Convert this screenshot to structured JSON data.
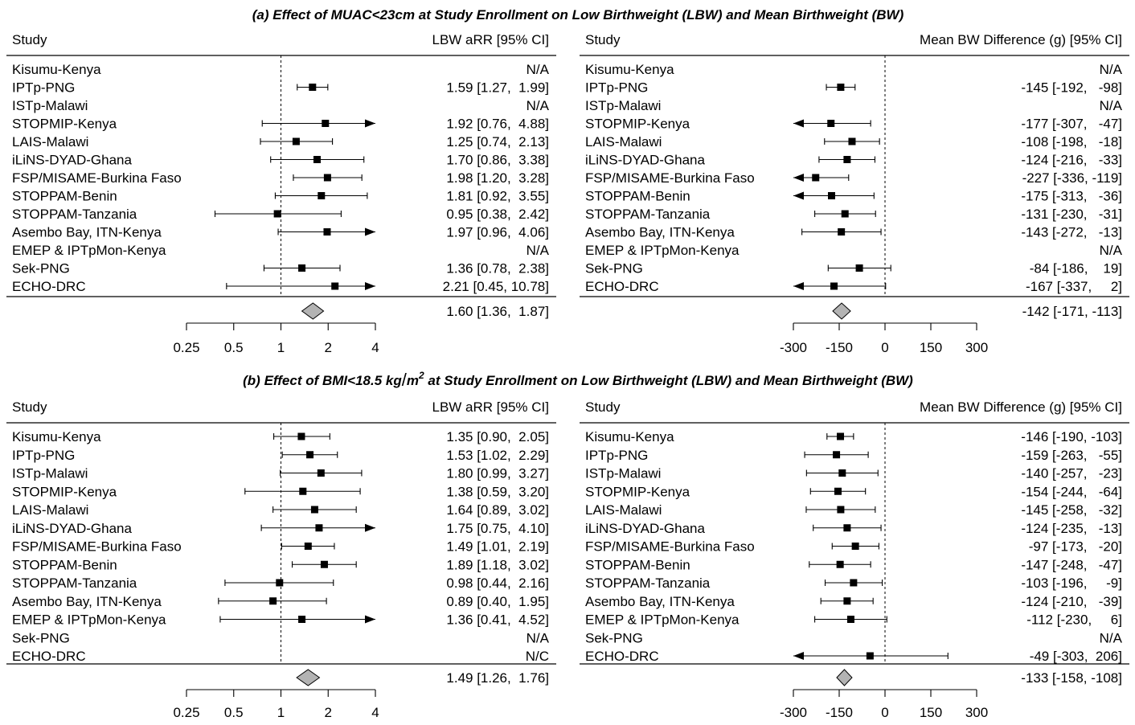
{
  "chart_data": [
    {
      "panel": "a",
      "side": "left",
      "type": "forest",
      "title": "(a) Effect of MUAC<23cm at Study Enrollment on Low Birthweight (LBW) and Mean Birthweight (BW)",
      "header_study": "Study",
      "header_stat": "LBW aRR [95% CI]",
      "scale": "log",
      "ref_line": 1,
      "xlim": [
        0.25,
        4
      ],
      "ticks": [
        0.25,
        0.5,
        1,
        2,
        4
      ],
      "tick_labels": [
        "0.25",
        "0.5",
        "1",
        "2",
        "4"
      ],
      "rows": [
        {
          "study": "Kisumu-Kenya",
          "est": null,
          "lo": null,
          "hi": null,
          "label": "N/A"
        },
        {
          "study": "IPTp-PNG",
          "est": 1.59,
          "lo": 1.27,
          "hi": 1.99,
          "label": "1.59 [1.27,  1.99]"
        },
        {
          "study": "ISTp-Malawi",
          "est": null,
          "lo": null,
          "hi": null,
          "label": "N/A"
        },
        {
          "study": "STOPMIP-Kenya",
          "est": 1.92,
          "lo": 0.76,
          "hi": 4.88,
          "label": "1.92 [0.76,  4.88]"
        },
        {
          "study": "LAIS-Malawi",
          "est": 1.25,
          "lo": 0.74,
          "hi": 2.13,
          "label": "1.25 [0.74,  2.13]"
        },
        {
          "study": "iLiNS-DYAD-Ghana",
          "est": 1.7,
          "lo": 0.86,
          "hi": 3.38,
          "label": "1.70 [0.86,  3.38]"
        },
        {
          "study": "FSP/MISAME-Burkina Faso",
          "est": 1.98,
          "lo": 1.2,
          "hi": 3.28,
          "label": "1.98 [1.20,  3.28]"
        },
        {
          "study": "STOPPAM-Benin",
          "est": 1.81,
          "lo": 0.92,
          "hi": 3.55,
          "label": "1.81 [0.92,  3.55]"
        },
        {
          "study": "STOPPAM-Tanzania",
          "est": 0.95,
          "lo": 0.38,
          "hi": 2.42,
          "label": "0.95 [0.38,  2.42]"
        },
        {
          "study": "Asembo Bay, ITN-Kenya",
          "est": 1.97,
          "lo": 0.96,
          "hi": 4.06,
          "label": "1.97 [0.96,  4.06]"
        },
        {
          "study": "EMEP & IPTpMon-Kenya",
          "est": null,
          "lo": null,
          "hi": null,
          "label": "N/A"
        },
        {
          "study": "Sek-PNG",
          "est": 1.36,
          "lo": 0.78,
          "hi": 2.38,
          "label": "1.36 [0.78,  2.38]"
        },
        {
          "study": "ECHO-DRC",
          "est": 2.21,
          "lo": 0.45,
          "hi": 10.78,
          "label": "2.21 [0.45, 10.78]"
        }
      ],
      "pooled": {
        "est": 1.6,
        "lo": 1.36,
        "hi": 1.87,
        "label": "1.60 [1.36,  1.87]"
      }
    },
    {
      "panel": "a",
      "side": "right",
      "type": "forest",
      "header_study": "Study",
      "header_stat": "Mean BW Difference (g) [95% CI]",
      "scale": "linear",
      "ref_line": 0,
      "xlim": [
        -300,
        300
      ],
      "ticks": [
        -300,
        -150,
        0,
        150,
        300
      ],
      "tick_labels": [
        "-300",
        "-150",
        "0",
        "150",
        "300"
      ],
      "rows": [
        {
          "study": "Kisumu-Kenya",
          "est": null,
          "lo": null,
          "hi": null,
          "label": "N/A"
        },
        {
          "study": "IPTp-PNG",
          "est": -145,
          "lo": -192,
          "hi": -98,
          "label": "-145 [-192,   -98]"
        },
        {
          "study": "ISTp-Malawi",
          "est": null,
          "lo": null,
          "hi": null,
          "label": "N/A"
        },
        {
          "study": "STOPMIP-Kenya",
          "est": -177,
          "lo": -307,
          "hi": -47,
          "label": "-177 [-307,   -47]"
        },
        {
          "study": "LAIS-Malawi",
          "est": -108,
          "lo": -198,
          "hi": -18,
          "label": "-108 [-198,   -18]"
        },
        {
          "study": "iLiNS-DYAD-Ghana",
          "est": -124,
          "lo": -216,
          "hi": -33,
          "label": "-124 [-216,   -33]"
        },
        {
          "study": "FSP/MISAME-Burkina Faso",
          "est": -227,
          "lo": -336,
          "hi": -119,
          "label": "-227 [-336, -119]"
        },
        {
          "study": "STOPPAM-Benin",
          "est": -175,
          "lo": -313,
          "hi": -36,
          "label": "-175 [-313,   -36]"
        },
        {
          "study": "STOPPAM-Tanzania",
          "est": -131,
          "lo": -230,
          "hi": -31,
          "label": "-131 [-230,   -31]"
        },
        {
          "study": "Asembo Bay, ITN-Kenya",
          "est": -143,
          "lo": -272,
          "hi": -13,
          "label": "-143 [-272,   -13]"
        },
        {
          "study": "EMEP & IPTpMon-Kenya",
          "est": null,
          "lo": null,
          "hi": null,
          "label": "N/A"
        },
        {
          "study": "Sek-PNG",
          "est": -84,
          "lo": -186,
          "hi": 19,
          "label": "-84 [-186,    19]"
        },
        {
          "study": "ECHO-DRC",
          "est": -167,
          "lo": -337,
          "hi": 2,
          "label": "-167 [-337,     2]"
        }
      ],
      "pooled": {
        "est": -142,
        "lo": -171,
        "hi": -113,
        "label": "-142 [-171, -113]"
      }
    },
    {
      "panel": "b",
      "side": "left",
      "type": "forest",
      "title_main": "(b) Effect of BMI<18.5 kg",
      "title_slash": "/",
      "title_m": "m",
      "title_sup": "2",
      "title_rest": " at Study Enrollment on Low Birthweight (LBW) and Mean Birthweight (BW)",
      "header_study": "Study",
      "header_stat": "LBW aRR [95% CI]",
      "scale": "log",
      "ref_line": 1,
      "xlim": [
        0.25,
        4
      ],
      "ticks": [
        0.25,
        0.5,
        1,
        2,
        4
      ],
      "tick_labels": [
        "0.25",
        "0.5",
        "1",
        "2",
        "4"
      ],
      "rows": [
        {
          "study": "Kisumu-Kenya",
          "est": 1.35,
          "lo": 0.9,
          "hi": 2.05,
          "label": "1.35 [0.90,  2.05]"
        },
        {
          "study": "IPTp-PNG",
          "est": 1.53,
          "lo": 1.02,
          "hi": 2.29,
          "label": "1.53 [1.02,  2.29]"
        },
        {
          "study": "ISTp-Malawi",
          "est": 1.8,
          "lo": 0.99,
          "hi": 3.27,
          "label": "1.80 [0.99,  3.27]"
        },
        {
          "study": "STOPMIP-Kenya",
          "est": 1.38,
          "lo": 0.59,
          "hi": 3.2,
          "label": "1.38 [0.59,  3.20]"
        },
        {
          "study": "LAIS-Malawi",
          "est": 1.64,
          "lo": 0.89,
          "hi": 3.02,
          "label": "1.64 [0.89,  3.02]"
        },
        {
          "study": "iLiNS-DYAD-Ghana",
          "est": 1.75,
          "lo": 0.75,
          "hi": 4.1,
          "label": "1.75 [0.75,  4.10]"
        },
        {
          "study": "FSP/MISAME-Burkina Faso",
          "est": 1.49,
          "lo": 1.01,
          "hi": 2.19,
          "label": "1.49 [1.01,  2.19]"
        },
        {
          "study": "STOPPAM-Benin",
          "est": 1.89,
          "lo": 1.18,
          "hi": 3.02,
          "label": "1.89 [1.18,  3.02]"
        },
        {
          "study": "STOPPAM-Tanzania",
          "est": 0.98,
          "lo": 0.44,
          "hi": 2.16,
          "label": "0.98 [0.44,  2.16]"
        },
        {
          "study": "Asembo Bay, ITN-Kenya",
          "est": 0.89,
          "lo": 0.4,
          "hi": 1.95,
          "label": "0.89 [0.40,  1.95]"
        },
        {
          "study": "EMEP & IPTpMon-Kenya",
          "est": 1.36,
          "lo": 0.41,
          "hi": 4.52,
          "label": "1.36 [0.41,  4.52]"
        },
        {
          "study": "Sek-PNG",
          "est": null,
          "lo": null,
          "hi": null,
          "label": "N/A"
        },
        {
          "study": "ECHO-DRC",
          "est": null,
          "lo": null,
          "hi": null,
          "label": "N/C"
        }
      ],
      "pooled": {
        "est": 1.49,
        "lo": 1.26,
        "hi": 1.76,
        "label": "1.49 [1.26,  1.76]"
      }
    },
    {
      "panel": "b",
      "side": "right",
      "type": "forest",
      "header_study": "Study",
      "header_stat": "Mean BW Difference (g) [95% CI]",
      "scale": "linear",
      "ref_line": 0,
      "xlim": [
        -300,
        300
      ],
      "ticks": [
        -300,
        -150,
        0,
        150,
        300
      ],
      "tick_labels": [
        "-300",
        "-150",
        "0",
        "150",
        "300"
      ],
      "rows": [
        {
          "study": "Kisumu-Kenya",
          "est": -146,
          "lo": -190,
          "hi": -103,
          "label": "-146 [-190, -103]"
        },
        {
          "study": "IPTp-PNG",
          "est": -159,
          "lo": -263,
          "hi": -55,
          "label": "-159 [-263,   -55]"
        },
        {
          "study": "ISTp-Malawi",
          "est": -140,
          "lo": -257,
          "hi": -23,
          "label": "-140 [-257,   -23]"
        },
        {
          "study": "STOPMIP-Kenya",
          "est": -154,
          "lo": -244,
          "hi": -64,
          "label": "-154 [-244,   -64]"
        },
        {
          "study": "LAIS-Malawi",
          "est": -145,
          "lo": -258,
          "hi": -32,
          "label": "-145 [-258,   -32]"
        },
        {
          "study": "iLiNS-DYAD-Ghana",
          "est": -124,
          "lo": -235,
          "hi": -13,
          "label": "-124 [-235,   -13]"
        },
        {
          "study": "FSP/MISAME-Burkina Faso",
          "est": -97,
          "lo": -173,
          "hi": -20,
          "label": "-97 [-173,   -20]"
        },
        {
          "study": "STOPPAM-Benin",
          "est": -147,
          "lo": -248,
          "hi": -47,
          "label": "-147 [-248,   -47]"
        },
        {
          "study": "STOPPAM-Tanzania",
          "est": -103,
          "lo": -196,
          "hi": -9,
          "label": "-103 [-196,     -9]"
        },
        {
          "study": "Asembo Bay, ITN-Kenya",
          "est": -124,
          "lo": -210,
          "hi": -39,
          "label": "-124 [-210,   -39]"
        },
        {
          "study": "EMEP & IPTpMon-Kenya",
          "est": -112,
          "lo": -230,
          "hi": 6,
          "label": "-112 [-230,     6]"
        },
        {
          "study": "Sek-PNG",
          "est": null,
          "lo": null,
          "hi": null,
          "label": "N/A"
        },
        {
          "study": "ECHO-DRC",
          "est": -49,
          "lo": -303,
          "hi": 206,
          "label": "-49 [-303,  206]"
        }
      ],
      "pooled": {
        "est": -133,
        "lo": -158,
        "hi": -108,
        "label": "-133 [-158, -108]"
      }
    }
  ]
}
